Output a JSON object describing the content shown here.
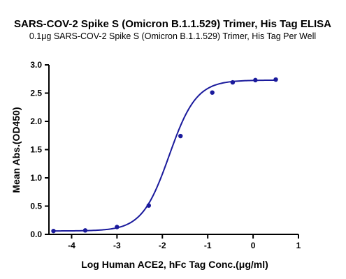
{
  "chart_data": {
    "type": "scatter",
    "title": "SARS-COV-2 Spike S (Omicron B.1.1.529) Trimer, His Tag ELISA",
    "subtitle": "0.1μg SARS-COV-2 Spike S (Omicron B.1.1.529) Trimer, His Tag Per Well",
    "xlabel": "Log Human ACE2, hFc Tag Conc.(μg/ml)",
    "ylabel": "Mean Abs.(OD450)",
    "xlim": [
      -4.5,
      1
    ],
    "ylim": [
      0,
      3.0
    ],
    "x_ticks": [
      "-4",
      "-3",
      "-2",
      "-1",
      "0",
      "1"
    ],
    "x_tick_values": [
      -4,
      -3,
      -2,
      -1,
      0,
      1
    ],
    "y_ticks": [
      "0.0",
      "0.5",
      "1.0",
      "1.5",
      "2.0",
      "2.5",
      "3.0"
    ],
    "y_tick_values": [
      0,
      0.5,
      1.0,
      1.5,
      2.0,
      2.5,
      3.0
    ],
    "series": [
      {
        "x": [
          -4.4,
          -3.7,
          -3.0,
          -2.3,
          -1.6,
          -0.9,
          -0.45,
          0.05,
          0.5
        ],
        "y": [
          0.06,
          0.07,
          0.13,
          0.51,
          1.74,
          2.51,
          2.69,
          2.73,
          2.74
        ]
      }
    ],
    "fit": {
      "bottom": 0.06,
      "top": 2.73,
      "logEC50": -1.85,
      "hill": 1.45
    },
    "color": "#1a1a9c",
    "grid": false,
    "legend": "none"
  }
}
